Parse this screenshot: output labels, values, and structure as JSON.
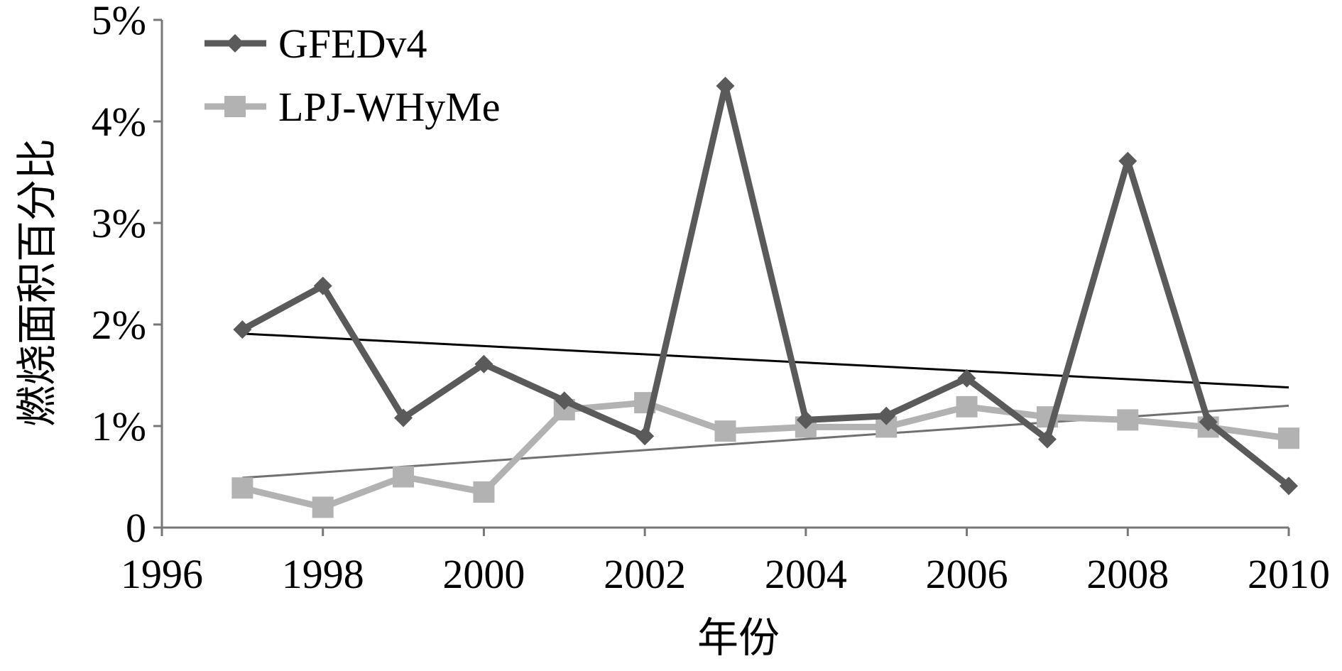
{
  "chart_data": {
    "type": "line",
    "xlabel": "年份",
    "ylabel": "燃烧面积百分比",
    "xlim": [
      1996,
      2010
    ],
    "ylim": [
      0,
      5
    ],
    "x_ticks": [
      1996,
      1998,
      2000,
      2002,
      2004,
      2006,
      2008,
      2010
    ],
    "x_tick_labels": [
      "1996",
      "1998",
      "2000",
      "2002",
      "2004",
      "2006",
      "2008",
      "2010"
    ],
    "y_ticks": [
      0,
      1,
      2,
      3,
      4,
      5
    ],
    "y_tick_labels": [
      "0",
      "1%",
      "2%",
      "3%",
      "4%",
      "5%"
    ],
    "grid": false,
    "legend_position": "top-left",
    "x": [
      1997,
      1998,
      1999,
      2000,
      2001,
      2002,
      2003,
      2004,
      2005,
      2006,
      2007,
      2008,
      2009,
      2010
    ],
    "series": [
      {
        "name": "GFEDv4",
        "marker": "diamond",
        "color": "#5a5a5a",
        "values": [
          1.95,
          2.38,
          1.08,
          1.61,
          1.25,
          0.9,
          4.35,
          1.06,
          1.1,
          1.47,
          0.87,
          3.61,
          1.04,
          0.41
        ],
        "trend": {
          "start": [
            1997,
            1.91
          ],
          "end": [
            2010,
            1.38
          ],
          "color": "#000000"
        }
      },
      {
        "name": "LPJ-WHyMe",
        "marker": "square",
        "color": "#b2b2b2",
        "values": [
          0.39,
          0.2,
          0.5,
          0.35,
          1.16,
          1.23,
          0.95,
          0.99,
          0.99,
          1.19,
          1.09,
          1.06,
          0.99,
          0.88
        ],
        "trend": {
          "start": [
            1997,
            0.49
          ],
          "end": [
            2010,
            1.2
          ],
          "color": "#707070"
        }
      }
    ]
  }
}
